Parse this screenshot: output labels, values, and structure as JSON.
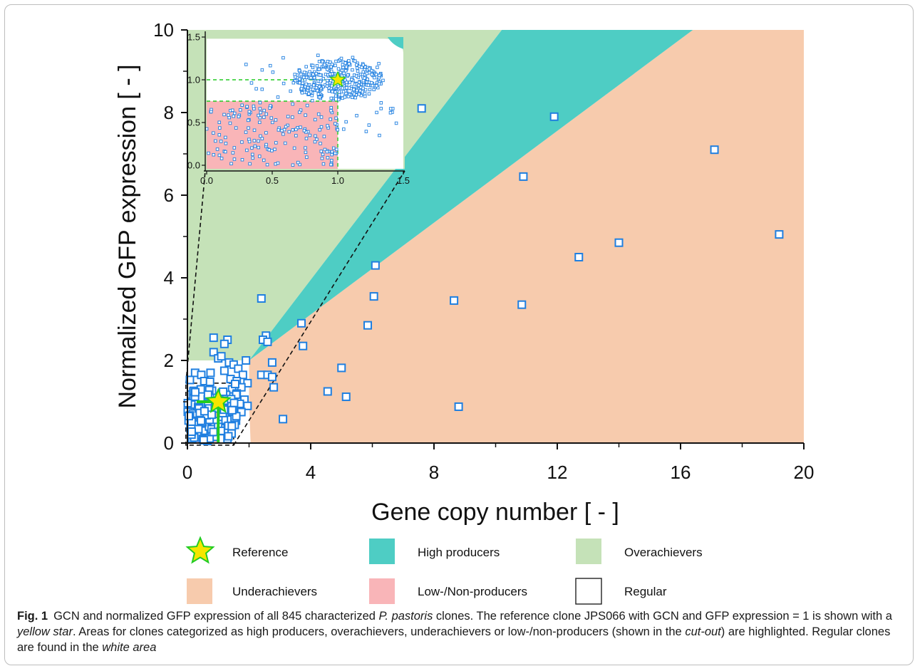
{
  "chart_data": {
    "type": "scatter",
    "xlabel": "Gene copy number [ - ]",
    "ylabel": "Normalized GFP expression [ - ]",
    "xlim": [
      0,
      20
    ],
    "ylim": [
      0,
      10
    ],
    "x_ticks": [
      "0",
      "4",
      "8",
      "12",
      "16",
      "20"
    ],
    "y_ticks": [
      "0",
      "2",
      "4",
      "6",
      "8",
      "10"
    ],
    "grid": false,
    "legend_position": "bottom",
    "regions": [
      {
        "name": "Overachievers",
        "color": "#c5e2b8"
      },
      {
        "name": "High producers",
        "color": "#4ecdc4"
      },
      {
        "name": "Underachievers",
        "color": "#f7cbad"
      },
      {
        "name": "Low-/Non-producers",
        "color": "#f9b5b8"
      },
      {
        "name": "Regular",
        "color": "#ffffff"
      }
    ],
    "reference": {
      "name": "Reference",
      "x": 1,
      "y": 1,
      "color": "#f5e600"
    },
    "points": [
      [
        7.6,
        8.1
      ],
      [
        11.9,
        7.9
      ],
      [
        17.1,
        7.1
      ],
      [
        10.9,
        6.45
      ],
      [
        19.2,
        5.05
      ],
      [
        14.0,
        4.85
      ],
      [
        12.7,
        4.5
      ],
      [
        6.1,
        4.3
      ],
      [
        6.05,
        3.55
      ],
      [
        8.65,
        3.45
      ],
      [
        10.85,
        3.35
      ],
      [
        2.4,
        3.5
      ],
      [
        3.7,
        2.9
      ],
      [
        5.85,
        2.85
      ],
      [
        3.75,
        2.35
      ],
      [
        2.55,
        2.6
      ],
      [
        2.45,
        2.5
      ],
      [
        2.6,
        2.45
      ],
      [
        2.75,
        1.95
      ],
      [
        5.0,
        1.82
      ],
      [
        2.4,
        1.65
      ],
      [
        2.6,
        1.65
      ],
      [
        2.75,
        1.6
      ],
      [
        2.8,
        1.35
      ],
      [
        4.55,
        1.25
      ],
      [
        5.15,
        1.12
      ],
      [
        8.8,
        0.88
      ],
      [
        3.1,
        0.58
      ],
      [
        0.85,
        2.55
      ],
      [
        1.3,
        2.5
      ],
      [
        1.2,
        2.4
      ],
      [
        0.85,
        2.2
      ],
      [
        1.0,
        2.05
      ],
      [
        1.1,
        2.1
      ],
      [
        1.35,
        1.95
      ],
      [
        1.5,
        1.9
      ],
      [
        1.9,
        2.0
      ],
      [
        1.65,
        1.8
      ],
      [
        1.8,
        1.65
      ],
      [
        1.2,
        1.75
      ],
      [
        0.25,
        1.7
      ],
      [
        0.45,
        1.65
      ],
      [
        0.75,
        1.7
      ],
      [
        0.55,
        1.5
      ],
      [
        1.4,
        1.55
      ],
      [
        1.6,
        1.5
      ],
      [
        1.95,
        1.45
      ],
      [
        1.45,
        1.3
      ],
      [
        1.75,
        1.35
      ],
      [
        1.6,
        1.2
      ],
      [
        1.85,
        1.05
      ],
      [
        1.95,
        0.9
      ],
      [
        1.7,
        0.95
      ],
      [
        1.5,
        0.8
      ],
      [
        1.75,
        0.75
      ],
      [
        1.45,
        0.6
      ],
      [
        1.3,
        0.1
      ],
      [
        0.15,
        0.1
      ],
      [
        0.35,
        0.2
      ],
      [
        0.55,
        0.3
      ],
      [
        0.75,
        0.2
      ],
      [
        0.95,
        0.3
      ],
      [
        0.1,
        0.35
      ],
      [
        0.3,
        0.45
      ],
      [
        0.5,
        0.1
      ],
      [
        0.7,
        0.4
      ],
      [
        0.9,
        0.15
      ],
      [
        0.2,
        0.25
      ],
      [
        0.65,
        0.05
      ],
      [
        0.85,
        0.35
      ]
    ],
    "inset": {
      "xlim": [
        0,
        1.5
      ],
      "ylim": [
        0,
        1.5
      ],
      "x_ticks": [
        "0.0",
        "0.5",
        "1.0",
        "1.5"
      ],
      "y_ticks": [
        "0.0",
        "0.5",
        "1.0",
        "1.5"
      ],
      "reference": {
        "x": 1.0,
        "y": 1.0
      }
    }
  },
  "legend": [
    {
      "label": "Reference",
      "swatch": "star"
    },
    {
      "label": "High producers",
      "swatch": "#4ecdc4"
    },
    {
      "label": "Overachievers",
      "swatch": "#c5e2b8"
    },
    {
      "label": "Underachievers",
      "swatch": "#f7cbad"
    },
    {
      "label": "Low-/Non-producers",
      "swatch": "#f9b5b8"
    },
    {
      "label": "Regular",
      "swatch": "#ffffff"
    }
  ],
  "caption": {
    "label": "Fig. 1",
    "t1": "GCN and normalized GFP expression of all 845 characterized ",
    "species": "P. pastoris",
    "t2": " clones. The reference clone JPS066 with GCN and GFP expression = 1 is shown with a ",
    "star": "yellow star",
    "t3": ". Areas for clones categorized as high producers, overachievers, underachievers or low-/non-producers (shown in the ",
    "cutout": "cut-out",
    "t4": ") are highlighted. Regular clones are found in the ",
    "white": "white area"
  }
}
